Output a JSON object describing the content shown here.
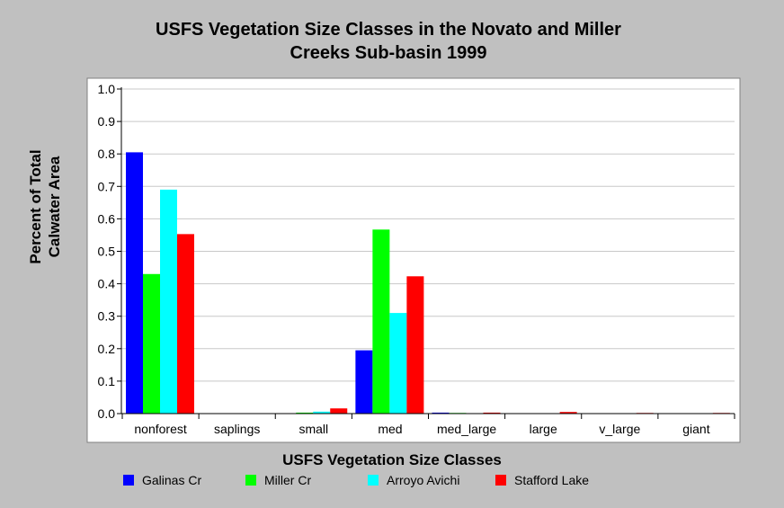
{
  "chart_data": {
    "type": "bar",
    "title_lines": [
      "USFS Vegetation Size Classes in the Novato and Miller",
      "Creeks Sub-basin 1999"
    ],
    "xlabel": "USFS Vegetation Size Classes",
    "ylabel_lines": [
      "Percent of Total",
      "Calwater Area"
    ],
    "categories": [
      "nonforest",
      "saplings",
      "small",
      "med",
      "med_large",
      "large",
      "v_large",
      "giant"
    ],
    "ylim": [
      0,
      1.0
    ],
    "yticks": [
      "0.0",
      "0.1",
      "0.2",
      "0.3",
      "0.4",
      "0.5",
      "0.6",
      "0.7",
      "0.8",
      "0.9",
      "1.0"
    ],
    "grid": true,
    "legend_position": "bottom",
    "series": [
      {
        "name": "Galinas Cr",
        "color": "#0000ff",
        "values": [
          0.805,
          0.0,
          0.0,
          0.195,
          0.003,
          0.0,
          0.0,
          0.0
        ]
      },
      {
        "name": "Miller Cr",
        "color": "#00ff00",
        "values": [
          0.43,
          0.0,
          0.003,
          0.567,
          0.002,
          0.0,
          0.0,
          0.0
        ]
      },
      {
        "name": "Arroyo Avichi",
        "color": "#00ffff",
        "values": [
          0.69,
          0.0,
          0.006,
          0.31,
          0.0,
          0.0,
          0.0,
          0.0
        ]
      },
      {
        "name": "Stafford Lake",
        "color": "#ff0000",
        "values": [
          0.553,
          0.0,
          0.016,
          0.423,
          0.003,
          0.005,
          0.002,
          0.002
        ]
      }
    ]
  }
}
